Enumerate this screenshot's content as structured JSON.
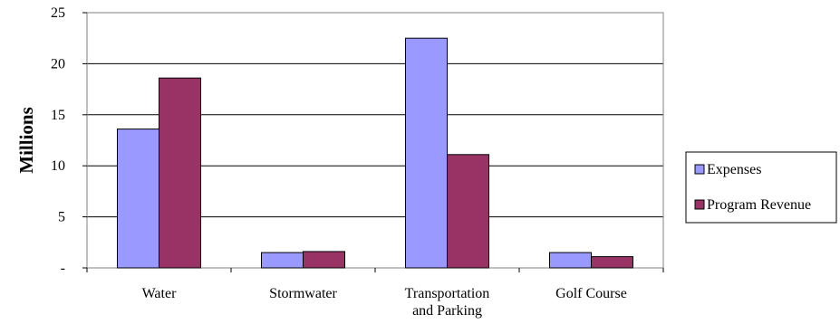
{
  "chart_data": {
    "type": "bar",
    "title": "",
    "xlabel": "",
    "ylabel": "Millions",
    "categories": [
      "Water",
      "Stormwater",
      "Transportation and Parking",
      "Golf Course"
    ],
    "category_label_lines": [
      [
        "Water"
      ],
      [
        "Stormwater"
      ],
      [
        "Transportation",
        "and Parking"
      ],
      [
        "Golf Course"
      ]
    ],
    "series": [
      {
        "name": "Expenses",
        "values": [
          13.6,
          1.5,
          22.5,
          1.5
        ],
        "color": "#9999ff"
      },
      {
        "name": "Program Revenue",
        "values": [
          18.6,
          1.6,
          11.1,
          1.1
        ],
        "color": "#993366"
      }
    ],
    "ylim": [
      0,
      25
    ],
    "yticks": [
      0,
      5,
      10,
      15,
      20,
      25
    ],
    "ytick_labels": [
      "-",
      "5",
      "10",
      "15",
      "20",
      "25"
    ],
    "grid": true,
    "legend_position": "right"
  }
}
